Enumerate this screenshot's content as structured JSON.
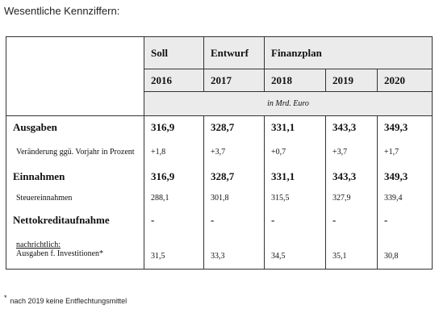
{
  "title": "Wesentliche Kennziffern:",
  "table": {
    "header": {
      "columns": [
        "Soll",
        "Entwurf",
        "Finanzplan"
      ],
      "years": [
        "2016",
        "2017",
        "2018",
        "2019",
        "2020"
      ]
    },
    "unit": "in Mrd. Euro",
    "rows": [
      {
        "label": "Ausgaben",
        "bold": true,
        "values": [
          "316,9",
          "328,7",
          "331,1",
          "343,3",
          "349,3"
        ]
      },
      {
        "label": "Veränderung ggü. Vorjahr in Prozent",
        "bold": false,
        "values": [
          "+1,8",
          "+3,7",
          "+0,7",
          "+3,7",
          "+1,7"
        ]
      },
      {
        "label": "Einnahmen",
        "bold": true,
        "values": [
          "316,9",
          "328,7",
          "331,1",
          "343,3",
          "349,3"
        ]
      },
      {
        "label": "Steuereinnahmen",
        "bold": false,
        "values": [
          "288,1",
          "301,8",
          "315,5",
          "327,9",
          "339,4"
        ]
      },
      {
        "label": "Nettokreditaufnahme",
        "bold": true,
        "values": [
          "-",
          "-",
          "-",
          "-",
          "-"
        ]
      },
      {
        "note": "nachrichtlich:",
        "label": "Ausgaben f. Investitionen*",
        "bold": false,
        "values": [
          "31,5",
          "33,3",
          "34,5",
          "35,1",
          "30,8"
        ]
      }
    ]
  },
  "footnote": {
    "marker": "*",
    "text": "nach 2019 keine Entflechtungsmittel"
  }
}
